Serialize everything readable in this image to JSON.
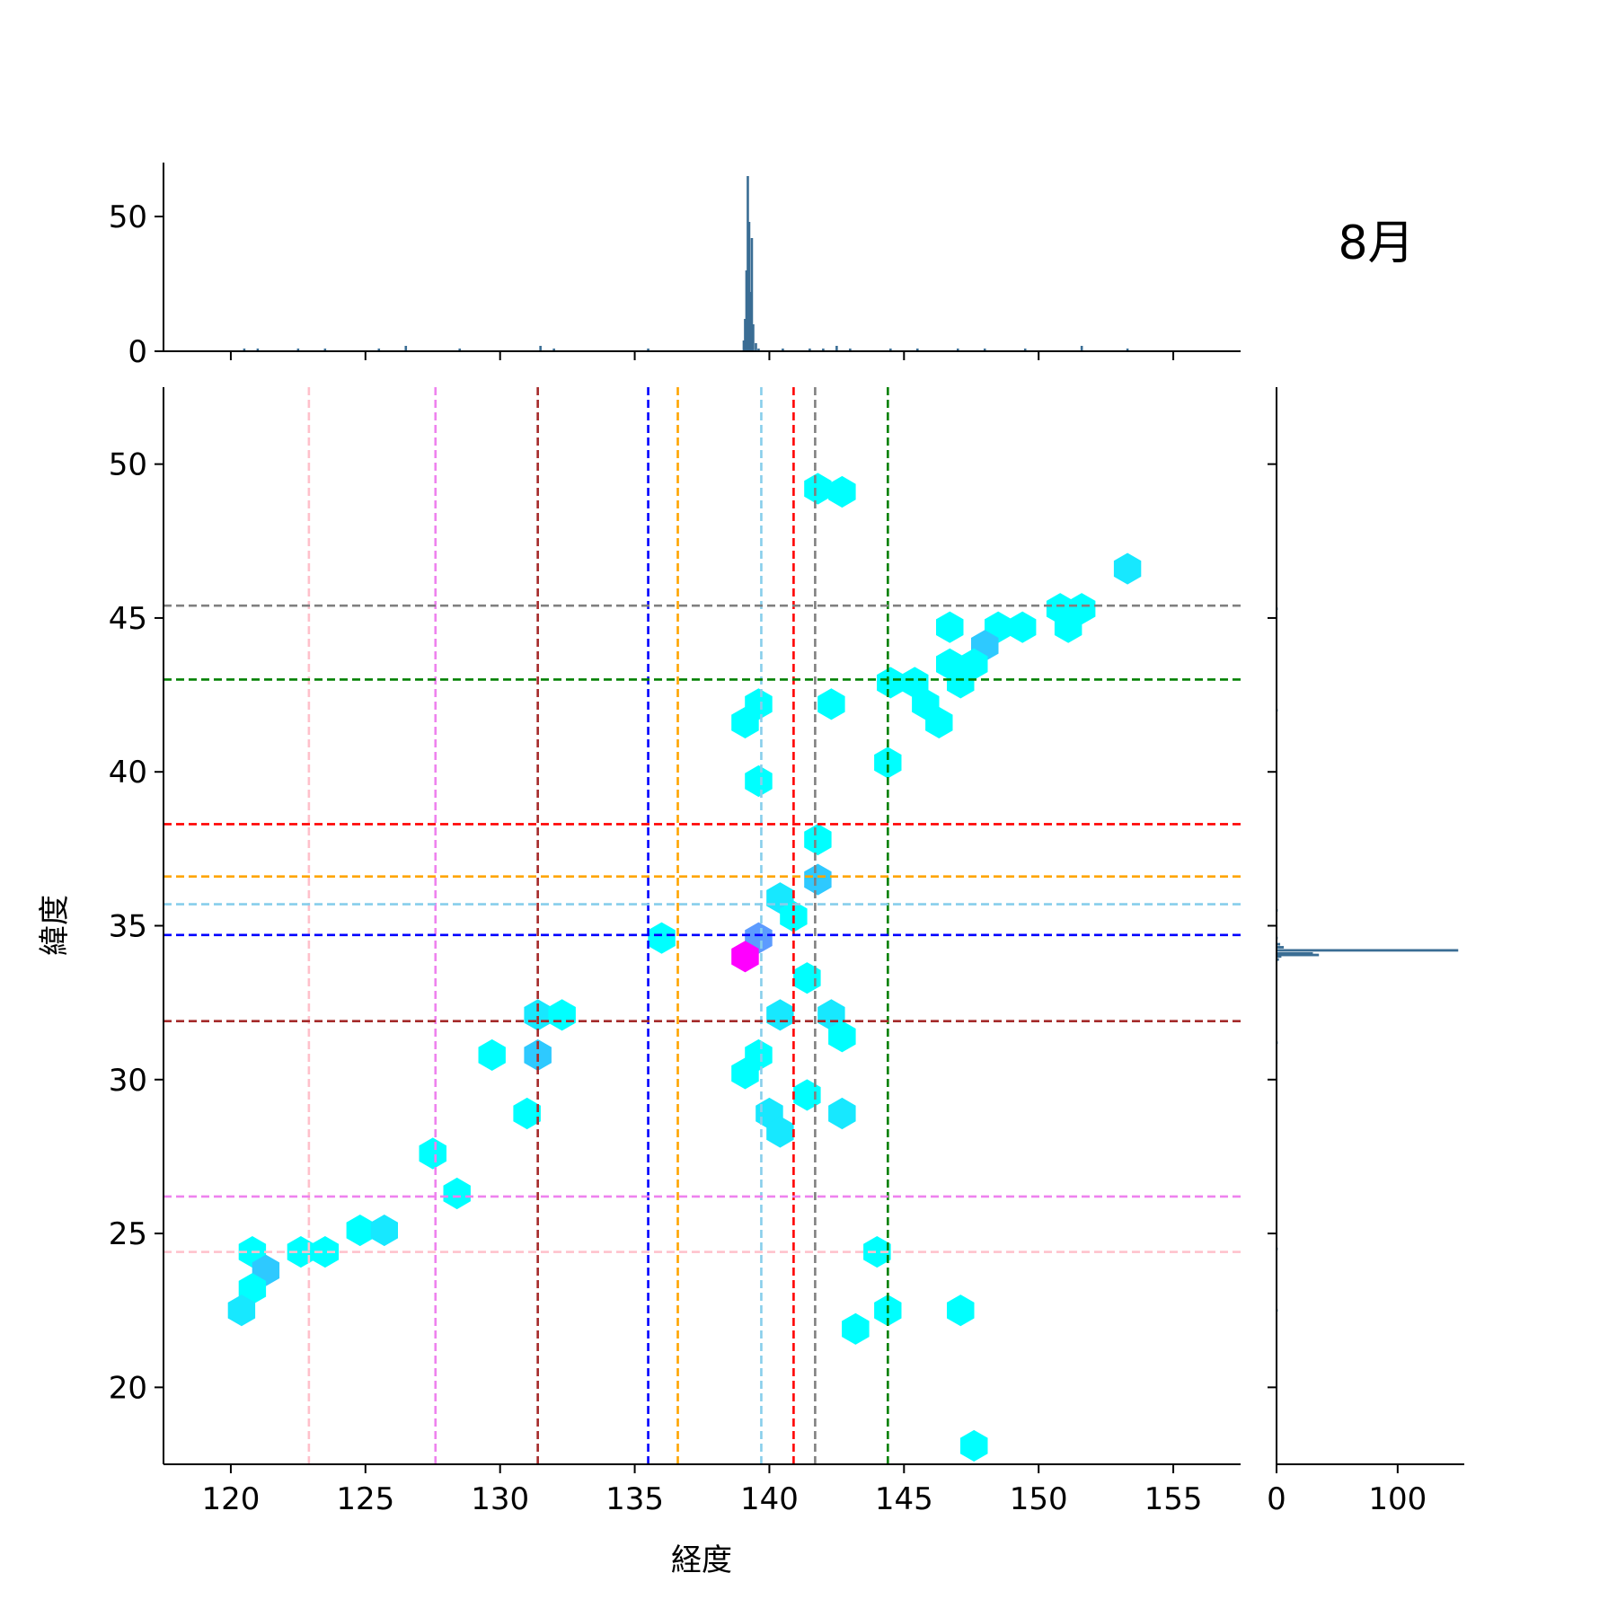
{
  "chart_data": {
    "type": "hexbin-jointplot",
    "title": "8月",
    "xlabel": "経度",
    "ylabel": "緯度",
    "xlim": [
      117.5,
      157.5
    ],
    "ylim": [
      17.5,
      52.5
    ],
    "x_ticks": [
      120,
      125,
      130,
      135,
      140,
      145,
      150,
      155
    ],
    "y_ticks": [
      20,
      25,
      30,
      35,
      40,
      45,
      50
    ],
    "top_marginal": {
      "ylim": [
        0,
        70
      ],
      "ticks": [
        0,
        50
      ]
    },
    "right_marginal": {
      "xlim": [
        0,
        155
      ],
      "ticks": [
        0,
        100
      ]
    },
    "hexbins": [
      {
        "x": 141.8,
        "y": 49.2,
        "c": "#00FFFF"
      },
      {
        "x": 142.7,
        "y": 49.1,
        "c": "#00FFFF"
      },
      {
        "x": 153.3,
        "y": 46.6,
        "c": "#17E8FF"
      },
      {
        "x": 150.8,
        "y": 45.3,
        "c": "#00FFFF"
      },
      {
        "x": 151.6,
        "y": 45.3,
        "c": "#00FFFF"
      },
      {
        "x": 151.1,
        "y": 44.7,
        "c": "#00FFFF"
      },
      {
        "x": 146.7,
        "y": 44.7,
        "c": "#00FFFF"
      },
      {
        "x": 148.5,
        "y": 44.7,
        "c": "#00FFFF"
      },
      {
        "x": 149.4,
        "y": 44.7,
        "c": "#00FFFF"
      },
      {
        "x": 148.0,
        "y": 44.1,
        "c": "#2EC9FF"
      },
      {
        "x": 146.7,
        "y": 43.5,
        "c": "#00FFFF"
      },
      {
        "x": 147.6,
        "y": 43.5,
        "c": "#00FFFF"
      },
      {
        "x": 144.5,
        "y": 42.9,
        "c": "#00FFFF"
      },
      {
        "x": 145.4,
        "y": 42.9,
        "c": "#00FFFF"
      },
      {
        "x": 147.1,
        "y": 42.9,
        "c": "#00FFFF"
      },
      {
        "x": 139.6,
        "y": 42.2,
        "c": "#00FFFF"
      },
      {
        "x": 142.3,
        "y": 42.2,
        "c": "#00FFFF"
      },
      {
        "x": 145.8,
        "y": 42.2,
        "c": "#00FFFF"
      },
      {
        "x": 139.1,
        "y": 41.6,
        "c": "#00FFFF"
      },
      {
        "x": 146.3,
        "y": 41.6,
        "c": "#00FFFF"
      },
      {
        "x": 144.4,
        "y": 40.3,
        "c": "#00FFFF"
      },
      {
        "x": 139.6,
        "y": 39.7,
        "c": "#00FFFF"
      },
      {
        "x": 141.8,
        "y": 37.8,
        "c": "#00FFFF"
      },
      {
        "x": 141.8,
        "y": 36.5,
        "c": "#2EC9FF"
      },
      {
        "x": 140.4,
        "y": 35.9,
        "c": "#17E8FF"
      },
      {
        "x": 140.9,
        "y": 35.3,
        "c": "#00FFFF"
      },
      {
        "x": 136.0,
        "y": 34.6,
        "c": "#00FFFF"
      },
      {
        "x": 139.6,
        "y": 34.6,
        "c": "#5C9BFF"
      },
      {
        "x": 139.1,
        "y": 34.0,
        "c": "#FF00FF"
      },
      {
        "x": 141.4,
        "y": 33.3,
        "c": "#00FFFF"
      },
      {
        "x": 131.4,
        "y": 32.1,
        "c": "#17E8FF"
      },
      {
        "x": 132.3,
        "y": 32.1,
        "c": "#00FFFF"
      },
      {
        "x": 140.4,
        "y": 32.1,
        "c": "#17E8FF"
      },
      {
        "x": 142.3,
        "y": 32.1,
        "c": "#17E8FF"
      },
      {
        "x": 142.7,
        "y": 31.4,
        "c": "#00FFFF"
      },
      {
        "x": 129.7,
        "y": 30.8,
        "c": "#00FFFF"
      },
      {
        "x": 131.4,
        "y": 30.8,
        "c": "#2EC9FF"
      },
      {
        "x": 139.6,
        "y": 30.8,
        "c": "#00FFFF"
      },
      {
        "x": 139.1,
        "y": 30.2,
        "c": "#00FFFF"
      },
      {
        "x": 141.4,
        "y": 29.5,
        "c": "#00FFFF"
      },
      {
        "x": 131.0,
        "y": 28.9,
        "c": "#00FFFF"
      },
      {
        "x": 140.0,
        "y": 28.9,
        "c": "#17E8FF"
      },
      {
        "x": 142.7,
        "y": 28.9,
        "c": "#17E8FF"
      },
      {
        "x": 140.4,
        "y": 28.3,
        "c": "#17E8FF"
      },
      {
        "x": 127.5,
        "y": 27.6,
        "c": "#00FFFF"
      },
      {
        "x": 128.4,
        "y": 26.3,
        "c": "#00FFFF"
      },
      {
        "x": 124.8,
        "y": 25.1,
        "c": "#00FFFF"
      },
      {
        "x": 125.7,
        "y": 25.1,
        "c": "#17E8FF"
      },
      {
        "x": 120.8,
        "y": 24.4,
        "c": "#00FFFF"
      },
      {
        "x": 122.6,
        "y": 24.4,
        "c": "#00FFFF"
      },
      {
        "x": 123.5,
        "y": 24.4,
        "c": "#00FFFF"
      },
      {
        "x": 144.0,
        "y": 24.4,
        "c": "#00FFFF"
      },
      {
        "x": 121.3,
        "y": 23.8,
        "c": "#2EC9FF"
      },
      {
        "x": 120.8,
        "y": 23.2,
        "c": "#00FFFF"
      },
      {
        "x": 120.4,
        "y": 22.5,
        "c": "#17E8FF"
      },
      {
        "x": 144.4,
        "y": 22.5,
        "c": "#00FFFF"
      },
      {
        "x": 147.1,
        "y": 22.5,
        "c": "#00FFFF"
      },
      {
        "x": 143.2,
        "y": 21.9,
        "c": "#00FFFF"
      },
      {
        "x": 147.6,
        "y": 18.1,
        "c": "#00FFFF"
      }
    ],
    "vlines": [
      {
        "x": 122.9,
        "color": "#FFC0CB"
      },
      {
        "x": 127.6,
        "color": "#EE82EE"
      },
      {
        "x": 131.4,
        "color": "#A52A2A"
      },
      {
        "x": 135.5,
        "color": "#0000FF"
      },
      {
        "x": 136.6,
        "color": "#FFA500"
      },
      {
        "x": 139.7,
        "color": "#87CEEB"
      },
      {
        "x": 140.9,
        "color": "#FF0000"
      },
      {
        "x": 141.7,
        "color": "#808080"
      },
      {
        "x": 144.4,
        "color": "#008000"
      }
    ],
    "hlines": [
      {
        "y": 45.4,
        "color": "#808080"
      },
      {
        "y": 43.0,
        "color": "#008000"
      },
      {
        "y": 38.3,
        "color": "#FF0000"
      },
      {
        "y": 36.6,
        "color": "#FFA500"
      },
      {
        "y": 35.7,
        "color": "#87CEEB"
      },
      {
        "y": 34.7,
        "color": "#0000FF"
      },
      {
        "y": 31.9,
        "color": "#A52A2A"
      },
      {
        "y": 26.2,
        "color": "#EE82EE"
      },
      {
        "y": 24.4,
        "color": "#FFC0CB"
      }
    ],
    "top_histogram": [
      {
        "x": 120.5,
        "count": 1
      },
      {
        "x": 121.0,
        "count": 1
      },
      {
        "x": 122.5,
        "count": 1
      },
      {
        "x": 123.5,
        "count": 1
      },
      {
        "x": 125.5,
        "count": 1
      },
      {
        "x": 126.5,
        "count": 2
      },
      {
        "x": 128.5,
        "count": 1
      },
      {
        "x": 131.5,
        "count": 2
      },
      {
        "x": 132.0,
        "count": 1
      },
      {
        "x": 135.5,
        "count": 1
      },
      {
        "x": 139.05,
        "count": 4
      },
      {
        "x": 139.1,
        "count": 12
      },
      {
        "x": 139.15,
        "count": 30
      },
      {
        "x": 139.2,
        "count": 65
      },
      {
        "x": 139.25,
        "count": 48
      },
      {
        "x": 139.3,
        "count": 22
      },
      {
        "x": 139.35,
        "count": 42
      },
      {
        "x": 139.4,
        "count": 10
      },
      {
        "x": 139.5,
        "count": 3
      },
      {
        "x": 139.6,
        "count": 1
      },
      {
        "x": 140.5,
        "count": 1
      },
      {
        "x": 141.5,
        "count": 1
      },
      {
        "x": 142.0,
        "count": 1
      },
      {
        "x": 142.5,
        "count": 2
      },
      {
        "x": 143.0,
        "count": 1
      },
      {
        "x": 144.5,
        "count": 1
      },
      {
        "x": 145.5,
        "count": 1
      },
      {
        "x": 147.0,
        "count": 1
      },
      {
        "x": 148.0,
        "count": 1
      },
      {
        "x": 149.5,
        "count": 1
      },
      {
        "x": 151.6,
        "count": 2
      },
      {
        "x": 153.3,
        "count": 1
      }
    ],
    "right_histogram": [
      {
        "y": 33.9,
        "count": 2
      },
      {
        "y": 34.0,
        "count": 4
      },
      {
        "y": 34.05,
        "count": 35
      },
      {
        "y": 34.1,
        "count": 30
      },
      {
        "y": 34.2,
        "count": 150
      },
      {
        "y": 34.3,
        "count": 6
      },
      {
        "y": 34.4,
        "count": 3
      },
      {
        "y": 34.6,
        "count": 1
      },
      {
        "y": 35.5,
        "count": 1
      },
      {
        "y": 31.2,
        "count": 1
      },
      {
        "y": 24.5,
        "count": 1
      },
      {
        "y": 42.0,
        "count": 1
      },
      {
        "y": 22.5,
        "count": 1
      },
      {
        "y": 45.3,
        "count": 1
      }
    ]
  }
}
